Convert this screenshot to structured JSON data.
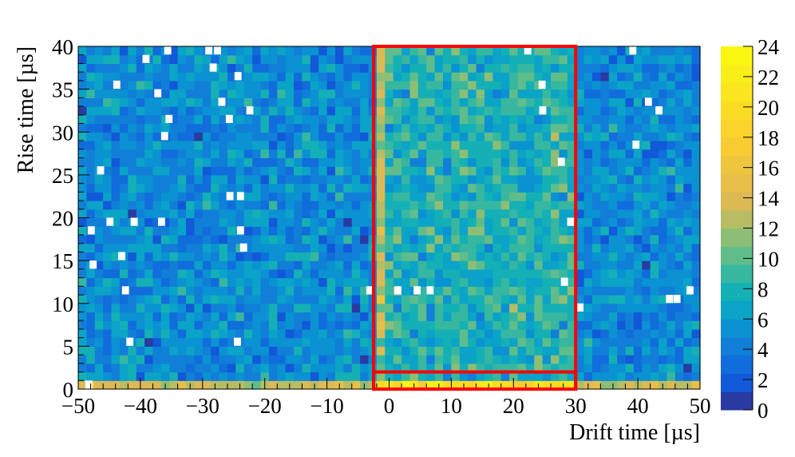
{
  "chart_data": {
    "type": "heatmap",
    "title": "",
    "xlabel": "Drift time [µs]",
    "ylabel": "Rise time [µs]",
    "xlim": [
      -50,
      50
    ],
    "ylim": [
      0,
      40
    ],
    "zlim": [
      0,
      24
    ],
    "x_bin_width": 1.3333,
    "y_bin_width": 1.0,
    "x_ticks": [
      -50,
      -40,
      -30,
      -20,
      -10,
      0,
      10,
      20,
      30,
      40,
      50
    ],
    "x_tick_labels": [
      "−50",
      "−40",
      "−30",
      "−20",
      "−10",
      "0",
      "10",
      "20",
      "30",
      "40",
      "50"
    ],
    "y_ticks": [
      0,
      5,
      10,
      15,
      20,
      25,
      30,
      35,
      40
    ],
    "y_tick_labels": [
      "0",
      "5",
      "10",
      "15",
      "20",
      "25",
      "30",
      "35",
      "40"
    ],
    "colorbar_ticks": [
      0,
      2,
      4,
      6,
      8,
      10,
      12,
      14,
      16,
      18,
      20,
      22,
      24
    ],
    "colorbar_tick_labels": [
      "0",
      "2",
      "4",
      "6",
      "8",
      "10",
      "12",
      "14",
      "16",
      "18",
      "20",
      "22",
      "24"
    ],
    "colormap": "parula",
    "grid": false,
    "typical_counts": {
      "outside_window": 5,
      "inside_window": 8,
      "window_left_edge": 13,
      "low_rise_time_row_outside": 13,
      "low_rise_time_row_inside": 20
    },
    "empty_bins": [
      [
        -48.2,
        0.5
      ],
      [
        -47.5,
        14.5
      ],
      [
        -47.8,
        18.5
      ],
      [
        -46.3,
        25.5
      ],
      [
        -44.8,
        19.5
      ],
      [
        -43.7,
        35.5
      ],
      [
        -42.3,
        11.5
      ],
      [
        -42.9,
        15.5
      ],
      [
        -41.6,
        5.5
      ],
      [
        -40.9,
        19.5
      ],
      [
        -39,
        38.5
      ],
      [
        -37.1,
        34.5
      ],
      [
        -36.5,
        19.5
      ],
      [
        -36,
        29.5
      ],
      [
        -35.3,
        31.5
      ],
      [
        -35.5,
        39.5
      ],
      [
        -28.9,
        39.5
      ],
      [
        -28.2,
        37.5
      ],
      [
        -27.5,
        39.5
      ],
      [
        -26.8,
        33.5
      ],
      [
        -25.6,
        31.5
      ],
      [
        -25.5,
        22.5
      ],
      [
        -24.3,
        5.5
      ],
      [
        -24.2,
        36.5
      ],
      [
        -23.8,
        18.5
      ],
      [
        -23.8,
        22.5
      ],
      [
        -23.3,
        16.5
      ],
      [
        -22.3,
        32.5
      ],
      [
        -3,
        11.5
      ],
      [
        1.5,
        11.5
      ],
      [
        4.6,
        11.5
      ],
      [
        6.7,
        11.5
      ],
      [
        22.4,
        39.5
      ],
      [
        24.7,
        35.5
      ],
      [
        24.8,
        32.5
      ],
      [
        27.8,
        26.5
      ],
      [
        28.3,
        12.5
      ],
      [
        29.3,
        19.5
      ],
      [
        30.8,
        9.5
      ],
      [
        39.3,
        39.5
      ],
      [
        39.8,
        28.5
      ],
      [
        41.8,
        33.5
      ],
      [
        43.5,
        32.5
      ],
      [
        45.2,
        10.5
      ],
      [
        46.4,
        10.5
      ],
      [
        48.5,
        11.5
      ]
    ],
    "annotations": [
      {
        "type": "rectangle",
        "color": "#ff0000",
        "x0": -2.5,
        "x1": 30,
        "y0": 0,
        "y1": 40
      },
      {
        "type": "rectangle",
        "color": "#ff0000",
        "x0": -2.5,
        "x1": 30,
        "y0": 0,
        "y1": 2
      }
    ],
    "colors": {
      "window_box": "#ff0000",
      "empty_bin": "#ffffff",
      "text": "#000000"
    }
  }
}
